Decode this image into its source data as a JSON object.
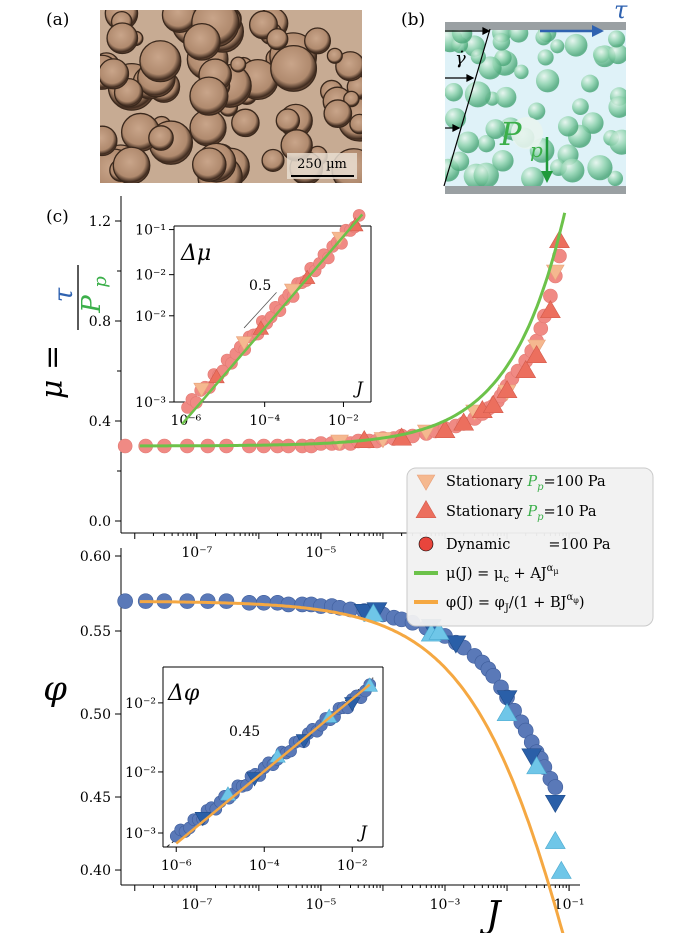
{
  "panel_labels": [
    "(a)",
    "(b)",
    "(c)"
  ],
  "micrograph": {
    "scale_bar": "250 µm"
  },
  "schematic": {
    "shear_stress_symbol": "τ",
    "shear_rate_symbol": "γ̇",
    "pressure_symbol": "P",
    "pressure_subscript": "p"
  },
  "colors": {
    "stationary_100": "#F5B88F",
    "stationary_10": "#EC6F5E",
    "dynamic_100": "#F08A84",
    "fit_mu": "#6CC24A",
    "fit_phi": "#F5A842",
    "phi_dynamic": "#5A79B8",
    "phi_stationary_100": "#2A5FA8",
    "phi_stationary_10": "#6FC6E8",
    "tau_blue": "#2F62B0",
    "pp_green": "#3BAF4A"
  },
  "chart_data": [
    {
      "type": "scatter",
      "name": "mu_vs_J",
      "ylabel": "μ = τ / P_p",
      "x_scale": "log",
      "xlim": [
        6e-09,
        0.15
      ],
      "ylim": [
        0.0,
        1.3
      ],
      "yticks": [
        "0.0",
        "0.4",
        "0.8",
        "1.2"
      ],
      "xticks": [
        "10⁻⁷",
        "10⁻⁵"
      ],
      "series": [
        {
          "name": "Dynamic =100 Pa",
          "marker": "circle",
          "x": [
            7e-09,
            1.5e-08,
            3e-08,
            7e-08,
            1.5e-07,
            3e-07,
            7e-07,
            1.2e-06,
            2e-06,
            3e-06,
            5e-06,
            7e-06,
            1e-05,
            1.5e-05,
            2e-05,
            3e-05,
            4e-05,
            6e-05,
            8e-05,
            0.0001,
            0.00015,
            0.0002,
            0.0003,
            0.0005,
            0.0007,
            0.001,
            0.0015,
            0.002,
            0.003,
            0.004,
            0.005,
            0.006,
            0.007,
            0.008,
            0.009,
            0.01,
            0.012,
            0.015,
            0.02,
            0.025,
            0.03,
            0.035,
            0.04,
            0.05,
            0.06,
            0.07
          ],
          "y": [
            0.3,
            0.3,
            0.3,
            0.3,
            0.3,
            0.3,
            0.3,
            0.3,
            0.3,
            0.3,
            0.3,
            0.3,
            0.31,
            0.31,
            0.31,
            0.31,
            0.32,
            0.32,
            0.32,
            0.33,
            0.33,
            0.34,
            0.34,
            0.35,
            0.36,
            0.37,
            0.38,
            0.39,
            0.41,
            0.43,
            0.45,
            0.46,
            0.48,
            0.5,
            0.52,
            0.54,
            0.57,
            0.6,
            0.64,
            0.68,
            0.72,
            0.77,
            0.82,
            0.9,
            0.98,
            1.06
          ]
        },
        {
          "name": "Stationary P_p=100 Pa",
          "marker": "triangle-down",
          "x": [
            2e-05,
            0.0001,
            0.0005,
            0.003,
            0.01,
            0.03,
            0.06
          ],
          "y": [
            0.32,
            0.33,
            0.36,
            0.44,
            0.52,
            0.7,
            1.0
          ]
        },
        {
          "name": "Stationary P_p=10 Pa",
          "marker": "triangle-up",
          "x": [
            5e-05,
            0.0002,
            0.001,
            0.002,
            0.004,
            0.006,
            0.01,
            0.02,
            0.03,
            0.05,
            0.07
          ],
          "y": [
            0.32,
            0.33,
            0.36,
            0.39,
            0.44,
            0.46,
            0.52,
            0.6,
            0.66,
            0.84,
            1.12
          ]
        },
        {
          "name": "μ(J) = μ_c + AJ^α_μ",
          "type": "line",
          "mu_c": 0.3,
          "A": 3.2,
          "alpha": 0.5
        }
      ],
      "inset": {
        "ylabel": "Δμ",
        "xlabel": "J",
        "slope_label": "0.5",
        "xticks": [
          "10⁻⁶",
          "10⁻⁴",
          "10⁻²"
        ],
        "yticks": [
          "10⁻³",
          "10⁻²",
          "10⁻²",
          "10⁻¹"
        ],
        "xlim": [
          5e-07,
          0.05
        ],
        "ylim": [
          0.001,
          0.11
        ]
      }
    },
    {
      "type": "scatter",
      "name": "phi_vs_J",
      "ylabel": "φ",
      "xlabel": "J",
      "x_scale": "log",
      "xlim": [
        6e-09,
        0.15
      ],
      "ylim": [
        0.397,
        0.6
      ],
      "yticks": [
        "0.40",
        "0.45",
        "0.50",
        "0.55",
        "0.60"
      ],
      "xticks": [
        "10⁻⁷",
        "10⁻⁵",
        "10⁻³",
        "10⁻¹"
      ],
      "series": [
        {
          "name": "Dynamic",
          "marker": "circle",
          "x": [
            7e-09,
            1.5e-08,
            3e-08,
            7e-08,
            1.5e-07,
            3e-07,
            7e-07,
            1.2e-06,
            2e-06,
            3e-06,
            5e-06,
            7e-06,
            1e-05,
            1.5e-05,
            2e-05,
            3e-05,
            5e-05,
            7e-05,
            0.0001,
            0.00015,
            0.0002,
            0.0003,
            0.0005,
            0.0007,
            0.001,
            0.0015,
            0.002,
            0.003,
            0.004,
            0.005,
            0.006,
            0.008,
            0.01,
            0.013,
            0.017,
            0.02,
            0.025,
            0.03,
            0.035,
            0.04,
            0.05,
            0.06
          ],
          "y": [
            0.568,
            0.568,
            0.568,
            0.568,
            0.568,
            0.568,
            0.567,
            0.567,
            0.567,
            0.566,
            0.566,
            0.566,
            0.565,
            0.565,
            0.564,
            0.563,
            0.562,
            0.561,
            0.56,
            0.558,
            0.557,
            0.555,
            0.552,
            0.55,
            0.547,
            0.543,
            0.54,
            0.535,
            0.531,
            0.527,
            0.523,
            0.516,
            0.51,
            0.502,
            0.495,
            0.49,
            0.483,
            0.477,
            0.473,
            0.468,
            0.461,
            0.456
          ]
        },
        {
          "name": "Stationary P_p=100 Pa",
          "marker": "triangle-down",
          "x": [
            5e-05,
            8e-05,
            0.0006,
            0.0015,
            0.01,
            0.025,
            0.06
          ],
          "y": [
            0.562,
            0.563,
            0.553,
            0.543,
            0.51,
            0.475,
            0.447
          ]
        },
        {
          "name": "Stationary P_p=10 Pa",
          "marker": "triangle-up",
          "x": [
            7e-05,
            0.0006,
            0.0008,
            0.01,
            0.03,
            0.06,
            0.075
          ],
          "y": [
            0.56,
            0.548,
            0.549,
            0.5,
            0.468,
            0.423,
            0.405
          ]
        },
        {
          "name": "φ(J) = φ_J/(1 + BJ^α_φ)",
          "type": "line",
          "phi_J": 0.568,
          "B": 1.7,
          "alpha": 0.45
        }
      ],
      "inset": {
        "ylabel": "Δφ",
        "xlabel": "J",
        "slope_label": "0.45",
        "xticks": [
          "10⁻⁶",
          "10⁻⁴",
          "10⁻²"
        ],
        "yticks": [
          "10⁻³",
          "10⁻²",
          "10⁻²"
        ],
        "xlim": [
          5e-07,
          0.05
        ],
        "ylim": [
          0.001,
          0.25
        ]
      }
    }
  ],
  "legend": {
    "items": [
      {
        "label": "Stationary ",
        "symbol": "P",
        "sub": "p",
        "suffix": "=100 Pa",
        "marker": "triangle-down"
      },
      {
        "label": "Stationary ",
        "symbol": "P",
        "sub": "p",
        "suffix": "=10 Pa",
        "marker": "triangle-up"
      },
      {
        "label": "Dynamic",
        "symbol": "",
        "sub": "",
        "suffix": "=100 Pa",
        "marker": "circle"
      },
      {
        "label": "μ(J) = μ",
        "symbol": "c",
        "sub": "",
        "suffix": " + AJ",
        "sup": "α",
        "supsub": "μ",
        "marker": "line-green"
      },
      {
        "label": "φ(J) = φ",
        "symbol": "J",
        "sub": "",
        "suffix": "/(1 + BJ",
        "sup": "α",
        "supsub": "φ",
        "tail": ")",
        "marker": "line-orange"
      }
    ]
  }
}
